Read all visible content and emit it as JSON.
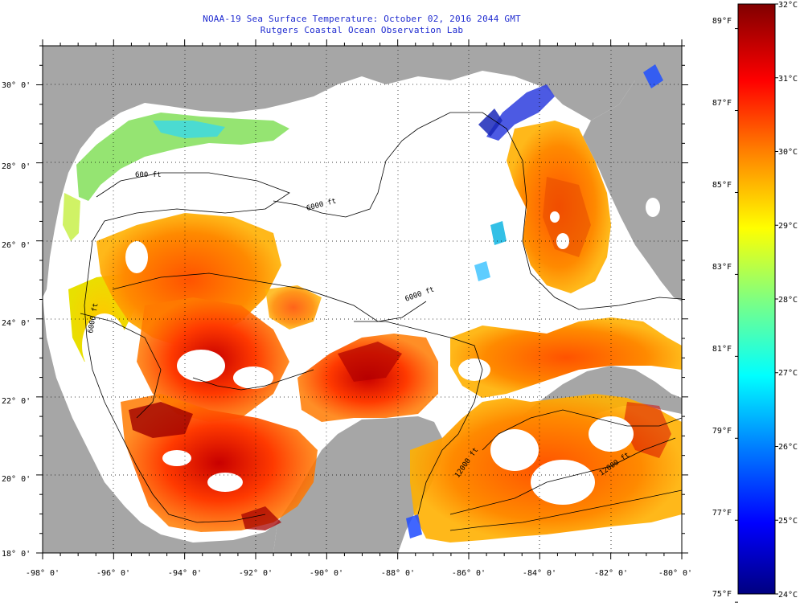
{
  "title": {
    "line1": "NOAA-19 Sea Surface Temperature:  October 02, 2016 2044 GMT",
    "line2": "Rutgers Coastal Ocean Observation Lab"
  },
  "map": {
    "lon_labels": [
      "-98° 0'",
      "-96° 0'",
      "-94° 0'",
      "-92° 0'",
      "-90° 0'",
      "-88° 0'",
      "-86° 0'",
      "-84° 0'",
      "-82° 0'",
      "-80° 0'"
    ],
    "lat_labels": [
      "18° 0'",
      "20° 0'",
      "22° 0'",
      "24° 0'",
      "26° 0'",
      "28° 0'",
      "30° 0'"
    ],
    "lon_range": [
      -98,
      -80
    ],
    "lat_range": [
      18,
      31
    ],
    "contour_labels": [
      "600 ft",
      "6000 ft",
      "6000 ft",
      "12000 ft",
      "12000 ft",
      "6000 ft"
    ],
    "colors": {
      "land": "#a6a6a6",
      "cloud_or_nodata": "#ffffff"
    }
  },
  "colorbar": {
    "celsius_labels": [
      "32°C",
      "31°C",
      "30°C",
      "29°C",
      "28°C",
      "27°C",
      "26°C",
      "25°C",
      "24°C"
    ],
    "fahrenheit_labels": [
      "89°F",
      "87°F",
      "85°F",
      "83°F",
      "81°F",
      "79°F",
      "77°F",
      "75°F"
    ],
    "range_c": [
      24,
      32
    ],
    "stops": [
      "#000080",
      "#0000ff",
      "#0080ff",
      "#00ffff",
      "#80ff80",
      "#ffff00",
      "#ff8000",
      "#ff0000",
      "#800000"
    ]
  }
}
